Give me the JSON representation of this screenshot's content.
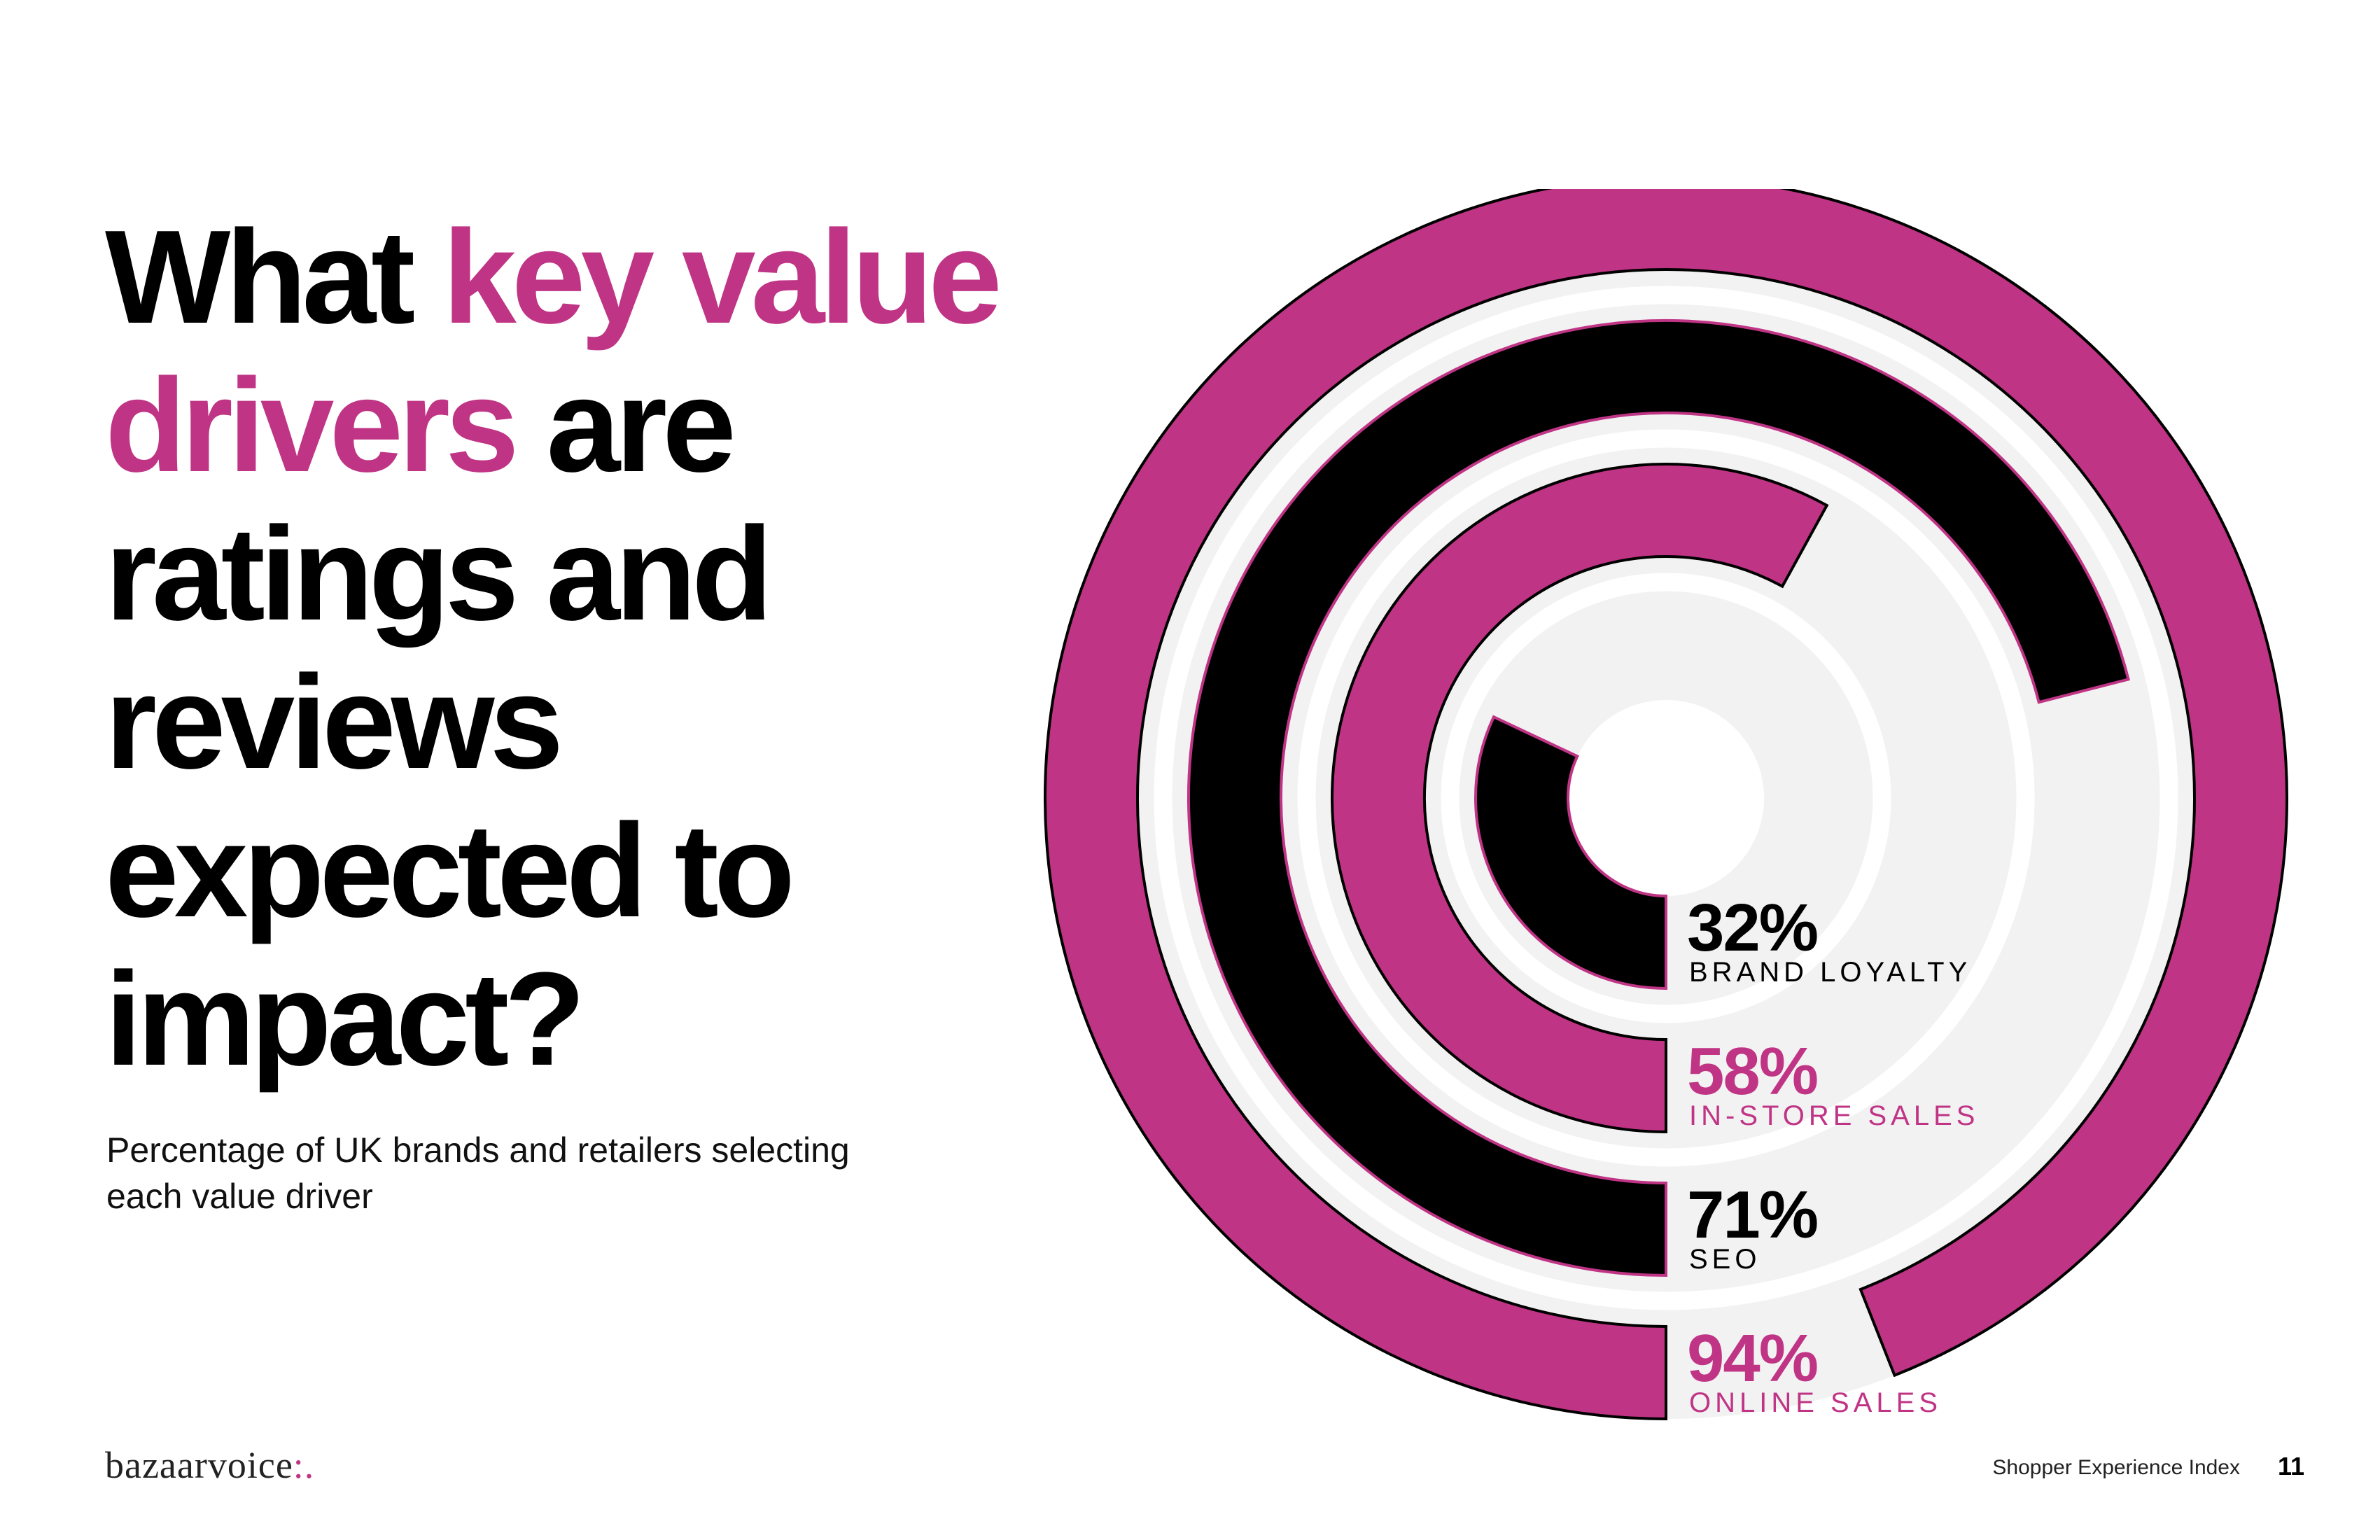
{
  "headline": {
    "part1": "What ",
    "accent": "key value drivers",
    "part2": " are ratings and reviews expected to impact?"
  },
  "subtitle": "Percentage of UK brands and retailers selecting each value driver",
  "colors": {
    "magenta": "#c03485",
    "black": "#000000",
    "track": "#f2f2f2",
    "white": "#ffffff"
  },
  "chart_data": {
    "type": "radial-bar",
    "unit": "%",
    "series": [
      {
        "name": "BRAND LOYALTY",
        "label": "32%",
        "value": 32,
        "color": "#000000"
      },
      {
        "name": "IN-STORE SALES",
        "label": "58%",
        "value": 58,
        "color": "#c03485"
      },
      {
        "name": "SEO",
        "label": "71%",
        "value": 71,
        "color": "#000000"
      },
      {
        "name": "ONLINE SALES",
        "label": "94%",
        "value": 94,
        "color": "#c03485"
      }
    ]
  },
  "footer": {
    "logo_text": "bazaarvoice",
    "logo_mark": ":.",
    "report_title": "Shopper Experience Index",
    "page_number": "11"
  }
}
